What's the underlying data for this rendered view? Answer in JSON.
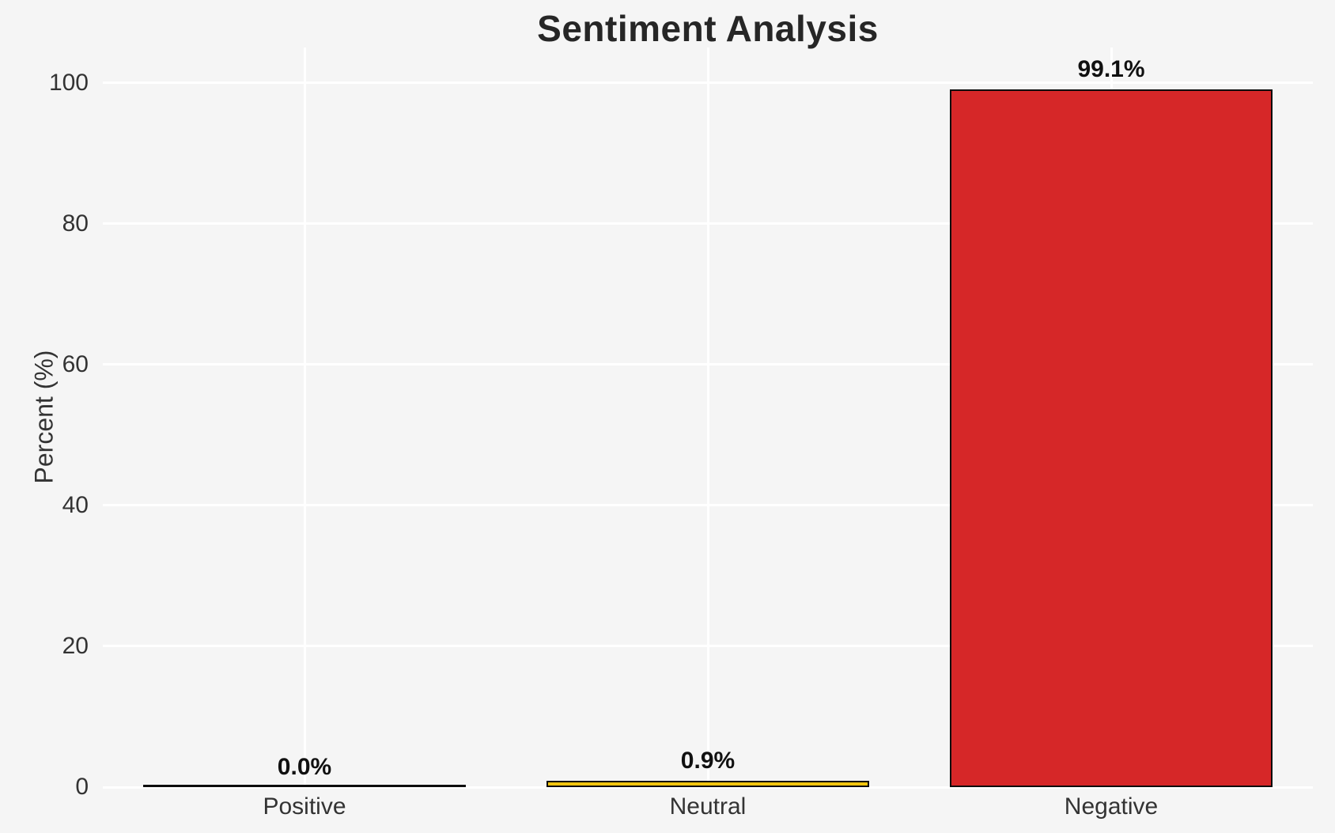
{
  "page": {
    "background": "#f5f5f5"
  },
  "chart_data": {
    "type": "bar",
    "title": "Sentiment Analysis",
    "categories": [
      "Positive",
      "Neutral",
      "Negative"
    ],
    "values": [
      0.0,
      0.9,
      99.1
    ],
    "value_labels": [
      "0.0%",
      "0.9%",
      "99.1%"
    ],
    "series": [
      {
        "name": "Percent",
        "values": [
          0.0,
          0.9,
          99.1
        ]
      }
    ],
    "bar_colors": [
      "#2ecc71",
      "#f1c40f",
      "#d62728"
    ],
    "bar_edge_color": "#0d0d0d",
    "xlabel": "",
    "ylabel": "Percent (%)",
    "yticks": [
      0,
      20,
      40,
      60,
      80,
      100
    ],
    "ytick_labels": [
      "0",
      "20",
      "40",
      "60",
      "80",
      "100"
    ],
    "ylim": [
      0,
      105
    ],
    "grid": "on",
    "grid_color": "#ffffff",
    "legend": "none",
    "background_color": "#f5f5f5",
    "title_color": "#262626",
    "tick_label_color": "#333333",
    "value_label_color": "#111111"
  }
}
